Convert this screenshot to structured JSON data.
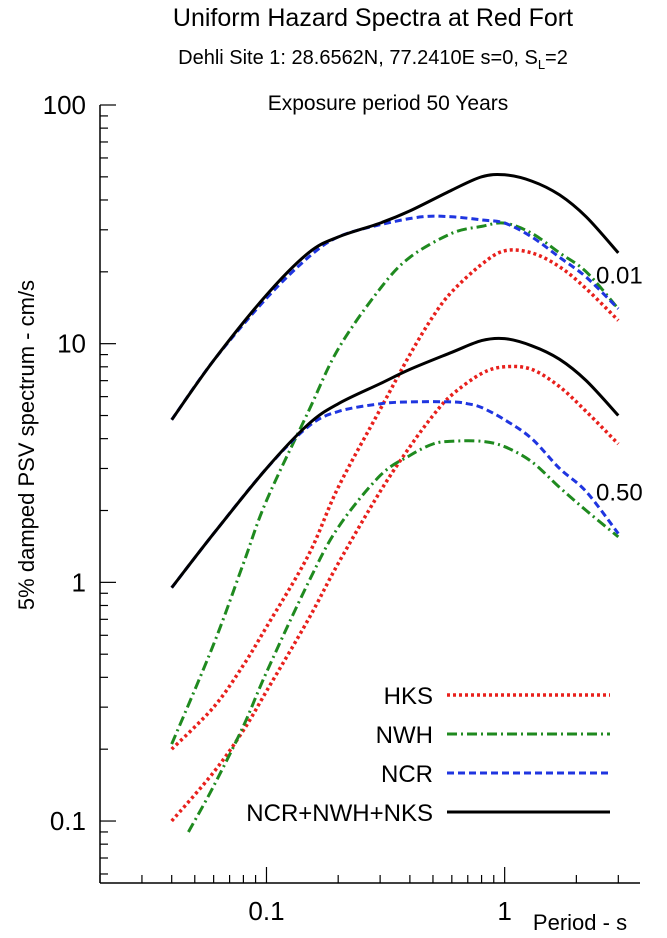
{
  "chart_data": {
    "type": "line",
    "title": "Uniform Hazard Spectra at Red Fort",
    "subtitle_prefix": "Dehli Site 1: 28.6562N, 77.2410E  s=0,  S",
    "subtitle_sub": "L",
    "subtitle_suffix": "=2",
    "annotation": "Exposure period 50 Years",
    "xlabel": "Period - s",
    "ylabel": "5% damped PSV spectrum - cm/s",
    "x_scale": "log",
    "y_scale": "log",
    "xlim": [
      0.02,
      3.7
    ],
    "ylim": [
      0.055,
      100
    ],
    "x_ticks": [
      {
        "v": 0.1,
        "label": "0.1"
      },
      {
        "v": 1,
        "label": "1"
      }
    ],
    "y_ticks": [
      {
        "v": 100,
        "label": "100"
      },
      {
        "v": 10,
        "label": "10"
      },
      {
        "v": 1,
        "label": "1"
      },
      {
        "v": 0.1,
        "label": "0.1"
      }
    ],
    "grid": false,
    "legend_position": "bottom-right",
    "legend": [
      {
        "key": "HKS",
        "label": "HKS",
        "color": "#e8201c",
        "style": "dotted"
      },
      {
        "key": "NWH",
        "label": "NWH",
        "color": "#1f8a1f",
        "style": "dashdot"
      },
      {
        "key": "NCR",
        "label": "NCR",
        "color": "#1f35e0",
        "style": "dashed"
      },
      {
        "key": "TOT",
        "label": "NCR+NWH+NKS",
        "color": "#000000",
        "style": "solid"
      }
    ],
    "curve_labels": [
      {
        "text": "0.01",
        "x": 4.6,
        "y": 19.5
      },
      {
        "text": "0.50",
        "x": 4.6,
        "y": 2.4
      }
    ],
    "series": [
      {
        "key": "TOT",
        "group": "0.01",
        "x": [
          0.04,
          0.06,
          0.1,
          0.15,
          0.2,
          0.3,
          0.4,
          0.6,
          0.8,
          1.0,
          1.3,
          1.7,
          2.2,
          3.0
        ],
        "y": [
          4.8,
          8.5,
          16,
          24,
          28,
          32,
          36,
          44,
          50,
          51,
          48,
          42,
          34,
          24
        ]
      },
      {
        "key": "NCR",
        "group": "0.01",
        "x": [
          0.04,
          0.06,
          0.1,
          0.15,
          0.2,
          0.3,
          0.45,
          0.6,
          0.8,
          1.0,
          1.3,
          1.7,
          2.2,
          3.0
        ],
        "y": [
          4.8,
          8.5,
          15.5,
          23,
          28,
          31.5,
          34,
          34,
          33,
          32,
          28,
          23,
          19,
          14
        ]
      },
      {
        "key": "NWH",
        "group": "0.01",
        "x": [
          0.04,
          0.06,
          0.08,
          0.1,
          0.15,
          0.2,
          0.3,
          0.4,
          0.6,
          0.8,
          1.0,
          1.3,
          1.7,
          2.2,
          3.0
        ],
        "y": [
          0.21,
          0.55,
          1.2,
          2.2,
          5.2,
          9.5,
          17,
          23,
          29,
          31,
          32,
          29,
          24,
          20,
          14
        ]
      },
      {
        "key": "HKS",
        "group": "0.01",
        "x": [
          0.04,
          0.06,
          0.08,
          0.1,
          0.15,
          0.2,
          0.3,
          0.4,
          0.5,
          0.6,
          0.8,
          1.0,
          1.3,
          1.7,
          2.2,
          3.0
        ],
        "y": [
          0.2,
          0.3,
          0.45,
          0.65,
          1.3,
          2.5,
          5.3,
          9,
          13,
          16.5,
          21.5,
          24.5,
          24,
          21,
          17,
          12.5
        ]
      },
      {
        "key": "TOT",
        "group": "0.50",
        "x": [
          0.04,
          0.06,
          0.1,
          0.15,
          0.2,
          0.3,
          0.4,
          0.6,
          0.8,
          1.0,
          1.3,
          1.7,
          2.2,
          3.0
        ],
        "y": [
          0.95,
          1.6,
          3.0,
          4.6,
          5.6,
          6.8,
          7.8,
          9.2,
          10.3,
          10.5,
          9.8,
          8.6,
          7.0,
          5.0
        ]
      },
      {
        "key": "NCR",
        "group": "0.50",
        "x": [
          0.04,
          0.06,
          0.1,
          0.15,
          0.2,
          0.3,
          0.4,
          0.6,
          0.7,
          0.8,
          1.0,
          1.3,
          1.7,
          2.2,
          3.0
        ],
        "y": [
          0.95,
          1.6,
          3.0,
          4.5,
          5.2,
          5.6,
          5.7,
          5.7,
          5.6,
          5.4,
          4.8,
          4.0,
          3.0,
          2.4,
          1.6
        ]
      },
      {
        "key": "NWH",
        "group": "0.50",
        "x": [
          0.047,
          0.06,
          0.08,
          0.1,
          0.15,
          0.2,
          0.3,
          0.4,
          0.5,
          0.6,
          0.8,
          1.0,
          1.3,
          1.7,
          2.2,
          3.0
        ],
        "y": [
          0.09,
          0.14,
          0.25,
          0.42,
          1.0,
          1.7,
          2.8,
          3.4,
          3.8,
          3.9,
          3.9,
          3.7,
          3.2,
          2.5,
          2.0,
          1.55
        ]
      },
      {
        "key": "HKS",
        "group": "0.50",
        "x": [
          0.04,
          0.06,
          0.08,
          0.1,
          0.15,
          0.2,
          0.3,
          0.4,
          0.5,
          0.6,
          0.8,
          1.0,
          1.3,
          1.7,
          2.2,
          3.0
        ],
        "y": [
          0.1,
          0.16,
          0.24,
          0.35,
          0.7,
          1.2,
          2.4,
          3.7,
          5.0,
          6.1,
          7.5,
          8.0,
          7.8,
          6.6,
          5.2,
          3.8
        ]
      }
    ]
  }
}
